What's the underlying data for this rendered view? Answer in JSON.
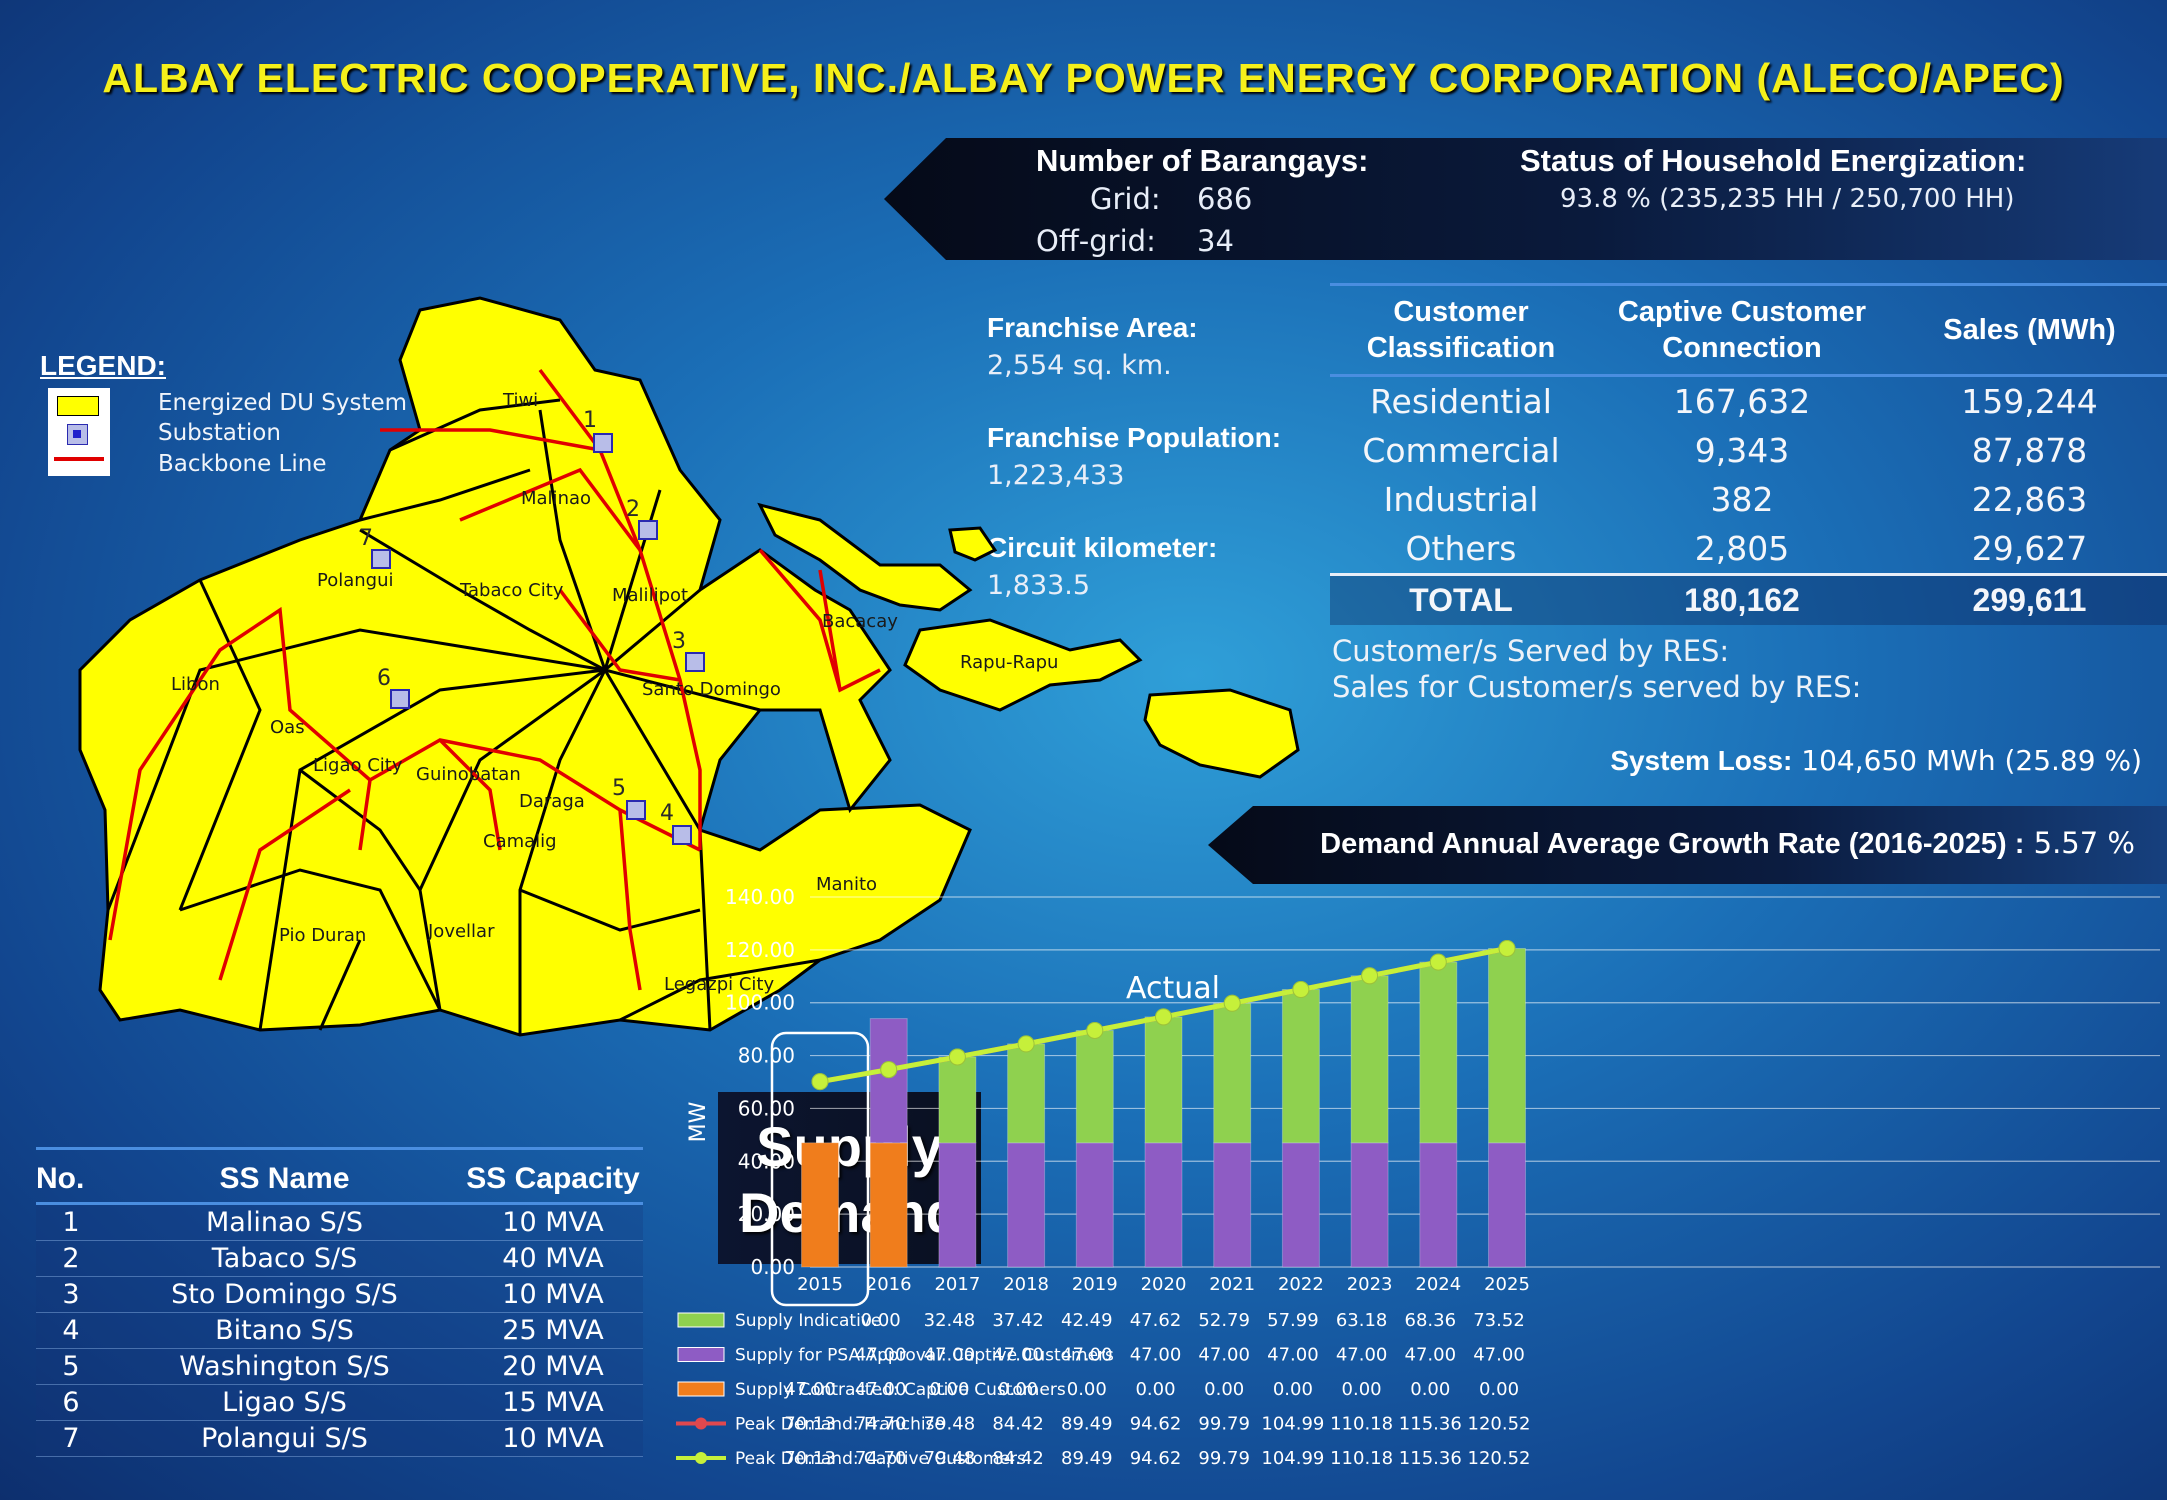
{
  "title": "ALBAY ELECTRIC COOPERATIVE, INC./ALBAY POWER ENERGY CORPORATION (ALECO/APEC)",
  "barangays": {
    "heading": "Number of Barangays:",
    "grid_label": "Grid:",
    "grid_value": "686",
    "offgrid_label": "Off-grid:",
    "offgrid_value": "34"
  },
  "energization": {
    "heading": "Status of Household Energization:",
    "value": "93.8 % (235,235 HH /  250,700 HH)"
  },
  "franchise": {
    "area_label": "Franchise Area:",
    "area_value": "2,554 sq. km.",
    "population_label": "Franchise Population:",
    "population_value": "1,223,433",
    "circuit_label": "Circuit kilometer:",
    "circuit_value": "1,833.5"
  },
  "customer_table": {
    "headers": [
      "Customer Classification",
      "Captive Customer Connection",
      "Sales (MWh)"
    ],
    "rows": [
      {
        "name": "Residential",
        "connections": "167,632",
        "sales": "159,244"
      },
      {
        "name": "Commercial",
        "connections": "9,343",
        "sales": "87,878"
      },
      {
        "name": "Industrial",
        "connections": "382",
        "sales": "22,863"
      },
      {
        "name": "Others",
        "connections": "2,805",
        "sales": "29,627"
      }
    ],
    "total": {
      "name": "TOTAL",
      "connections": "180,162",
      "sales": "299,611"
    }
  },
  "res": {
    "served_label": "Customer/s Served by RES:",
    "sales_label": "Sales for Customer/s served by RES:"
  },
  "system_loss": {
    "label": "System Loss:",
    "value": "104,650 MWh (25.89 %)"
  },
  "growth": {
    "label": "Demand Annual Average Growth Rate (2016-2025) :",
    "value": "5.57 %"
  },
  "legend": {
    "title": "LEGEND:",
    "items": [
      {
        "label": "Energized DU System",
        "color": "#ffff00"
      },
      {
        "label": "Substation",
        "color": "#1f1fcc"
      },
      {
        "label": "Backbone Line",
        "color": "#ff0000"
      }
    ]
  },
  "map": {
    "fill_color": "#ffff00",
    "places": [
      "Tiwi",
      "Malinao",
      "Polangui",
      "Tabaco City",
      "Malilipot",
      "Bacacay",
      "Rapu-Rapu",
      "Libon",
      "Oas",
      "Ligao City",
      "Guinobatan",
      "Santo Domingo",
      "Daraga",
      "Camalig",
      "Manito",
      "Pio Duran",
      "Jovellar",
      "Legazpi City"
    ],
    "substation_numbers": [
      "1",
      "2",
      "3",
      "4",
      "5",
      "6",
      "7"
    ]
  },
  "substation_table": {
    "headers": [
      "No.",
      "SS Name",
      "SS Capacity"
    ],
    "rows": [
      {
        "no": "1",
        "name": "Malinao S/S",
        "capacity": "10 MVA"
      },
      {
        "no": "2",
        "name": "Tabaco S/S",
        "capacity": "40 MVA"
      },
      {
        "no": "3",
        "name": "Sto Domingo S/S",
        "capacity": "10 MVA"
      },
      {
        "no": "4",
        "name": "Bitano S/S",
        "capacity": "25 MVA"
      },
      {
        "no": "5",
        "name": "Washington S/S",
        "capacity": "20 MVA"
      },
      {
        "no": "6",
        "name": "Ligao S/S",
        "capacity": "15 MVA"
      },
      {
        "no": "7",
        "name": "Polangui S/S",
        "capacity": "10 MVA"
      }
    ]
  },
  "supply_demand": {
    "title_line1": "Supply",
    "title_line2": "Demand"
  },
  "chart_data": {
    "type": "bar",
    "stacked": true,
    "ylabel": "MW",
    "ylim": [
      0,
      140
    ],
    "yticks": [
      "0.00",
      "20.00",
      "40.00",
      "60.00",
      "80.00",
      "100.00",
      "120.00",
      "140.00"
    ],
    "annotation": "Actual",
    "categories": [
      "2015",
      "2016",
      "2017",
      "2018",
      "2019",
      "2020",
      "2021",
      "2022",
      "2023",
      "2024",
      "2025"
    ],
    "series": [
      {
        "name": "Supply Indicative",
        "kind": "bar",
        "color": "#8fd14f",
        "values": [
          null,
          0.0,
          32.48,
          37.42,
          42.49,
          47.62,
          52.79,
          57.99,
          63.18,
          68.36,
          73.52
        ],
        "labels": [
          "",
          "0.00",
          "32.48",
          "37.42",
          "42.49",
          "47.62",
          "52.79",
          "57.99",
          "63.18",
          "68.36",
          "73.52"
        ]
      },
      {
        "name": "Supply for PSA Approval:  Captive Customers",
        "kind": "bar",
        "color": "#8e5cc4",
        "values": [
          null,
          47.0,
          47.0,
          47.0,
          47.0,
          47.0,
          47.0,
          47.0,
          47.0,
          47.0,
          47.0
        ],
        "labels": [
          "",
          "47.00",
          "47.00",
          "47.00",
          "47.00",
          "47.00",
          "47.00",
          "47.00",
          "47.00",
          "47.00",
          "47.00"
        ]
      },
      {
        "name": "Supply Contracted:  Captive Customers",
        "kind": "bar",
        "color": "#f07d1c",
        "values": [
          47.0,
          47.0,
          0.0,
          0.0,
          0.0,
          0.0,
          0.0,
          0.0,
          0.0,
          0.0,
          0.0
        ],
        "labels": [
          "47.00",
          "47.00",
          "0.00",
          "0.00",
          "0.00",
          "0.00",
          "0.00",
          "0.00",
          "0.00",
          "0.00",
          "0.00"
        ]
      },
      {
        "name": "Peak Demand:  Franchise",
        "kind": "line",
        "color": "#e0484e",
        "values": [
          70.13,
          74.7,
          79.48,
          84.42,
          89.49,
          94.62,
          99.79,
          104.99,
          110.18,
          115.36,
          120.52
        ],
        "labels": [
          "70.13",
          "74.70",
          "79.48",
          "84.42",
          "89.49",
          "94.62",
          "99.79",
          "104.99",
          "110.18",
          "115.36",
          "120.52"
        ]
      },
      {
        "name": "Peak Demand:  Captive Customers",
        "kind": "line",
        "color": "#c6f03a",
        "values": [
          70.13,
          74.7,
          79.48,
          84.42,
          89.49,
          94.62,
          99.79,
          104.99,
          110.18,
          115.36,
          120.52
        ],
        "labels": [
          "70.13",
          "74.70",
          "79.48",
          "84.42",
          "89.49",
          "94.62",
          "99.79",
          "104.99",
          "110.18",
          "115.36",
          "120.52"
        ]
      }
    ]
  }
}
